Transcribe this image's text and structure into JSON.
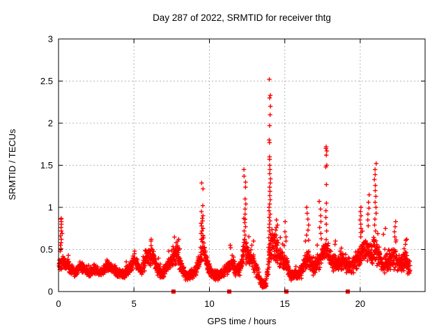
{
  "chart_data": {
    "type": "scatter",
    "title": "Day 287 of 2022, SRMTID for receiver thtg",
    "xlabel": "GPS time / hours",
    "ylabel": "SRMTID / TECUs",
    "xlim": [
      0,
      24.3
    ],
    "ylim": [
      0,
      3
    ],
    "xticks": [
      0,
      5,
      10,
      15,
      20
    ],
    "yticks": [
      "0",
      "0.5",
      "1",
      "1.5",
      "2",
      "2.5",
      "3"
    ],
    "ytick_values": [
      0,
      0.5,
      1,
      1.5,
      2,
      2.5,
      3
    ],
    "grid": true,
    "legend": "none",
    "marker": "plus",
    "marker_color": "#ff0000",
    "grid_color": "#b3b3b3",
    "frame_color": "#000000",
    "background_color": "#ffffff",
    "data_start_hour": 0.03,
    "data_end_hour": 23.3,
    "baseline_envelope": {
      "columns": [
        "hour",
        "low",
        "high"
      ],
      "points": [
        [
          0.0,
          0.22,
          0.42
        ],
        [
          0.3,
          0.25,
          0.45
        ],
        [
          0.55,
          0.24,
          0.42
        ],
        [
          0.85,
          0.2,
          0.33
        ],
        [
          1.1,
          0.16,
          0.28
        ],
        [
          1.4,
          0.22,
          0.38
        ],
        [
          1.7,
          0.2,
          0.34
        ],
        [
          2.0,
          0.16,
          0.28
        ],
        [
          2.4,
          0.2,
          0.34
        ],
        [
          2.8,
          0.16,
          0.28
        ],
        [
          3.2,
          0.22,
          0.38
        ],
        [
          3.5,
          0.22,
          0.36
        ],
        [
          3.9,
          0.17,
          0.29
        ],
        [
          4.3,
          0.14,
          0.26
        ],
        [
          4.7,
          0.2,
          0.36
        ],
        [
          5.0,
          0.26,
          0.46
        ],
        [
          5.2,
          0.24,
          0.42
        ],
        [
          5.5,
          0.18,
          0.32
        ],
        [
          5.9,
          0.28,
          0.55
        ],
        [
          6.2,
          0.3,
          0.58
        ],
        [
          6.5,
          0.2,
          0.38
        ],
        [
          6.8,
          0.14,
          0.27
        ],
        [
          7.2,
          0.2,
          0.4
        ],
        [
          7.6,
          0.28,
          0.55
        ],
        [
          7.9,
          0.3,
          0.58
        ],
        [
          8.2,
          0.18,
          0.35
        ],
        [
          8.5,
          0.1,
          0.24
        ],
        [
          8.8,
          0.12,
          0.28
        ],
        [
          9.1,
          0.18,
          0.35
        ],
        [
          9.4,
          0.28,
          0.52
        ],
        [
          9.6,
          0.38,
          0.72
        ],
        [
          9.8,
          0.25,
          0.45
        ],
        [
          10.1,
          0.15,
          0.3
        ],
        [
          10.5,
          0.12,
          0.26
        ],
        [
          10.9,
          0.13,
          0.28
        ],
        [
          11.3,
          0.2,
          0.42
        ],
        [
          11.5,
          0.24,
          0.48
        ],
        [
          11.8,
          0.15,
          0.32
        ],
        [
          12.1,
          0.2,
          0.4
        ],
        [
          12.35,
          0.32,
          0.75
        ],
        [
          12.6,
          0.28,
          0.55
        ],
        [
          12.9,
          0.25,
          0.5
        ],
        [
          13.2,
          0.12,
          0.3
        ],
        [
          13.5,
          0.04,
          0.14
        ],
        [
          13.75,
          0.03,
          0.12
        ],
        [
          13.95,
          0.15,
          0.65
        ],
        [
          14.1,
          0.28,
          0.85
        ],
        [
          14.35,
          0.33,
          0.72
        ],
        [
          14.6,
          0.28,
          0.58
        ],
        [
          14.9,
          0.24,
          0.5
        ],
        [
          15.1,
          0.2,
          0.44
        ],
        [
          15.4,
          0.12,
          0.26
        ],
        [
          15.8,
          0.12,
          0.28
        ],
        [
          16.1,
          0.15,
          0.32
        ],
        [
          16.4,
          0.24,
          0.52
        ],
        [
          16.6,
          0.26,
          0.56
        ],
        [
          16.9,
          0.18,
          0.38
        ],
        [
          17.2,
          0.24,
          0.48
        ],
        [
          17.5,
          0.28,
          0.62
        ],
        [
          17.8,
          0.32,
          0.66
        ],
        [
          18.1,
          0.24,
          0.48
        ],
        [
          18.4,
          0.22,
          0.44
        ],
        [
          18.7,
          0.25,
          0.5
        ],
        [
          19.0,
          0.22,
          0.45
        ],
        [
          19.3,
          0.18,
          0.4
        ],
        [
          19.6,
          0.22,
          0.45
        ],
        [
          19.9,
          0.28,
          0.58
        ],
        [
          20.1,
          0.3,
          0.62
        ],
        [
          20.4,
          0.33,
          0.68
        ],
        [
          20.7,
          0.3,
          0.6
        ],
        [
          21.0,
          0.33,
          0.7
        ],
        [
          21.2,
          0.28,
          0.58
        ],
        [
          21.5,
          0.18,
          0.4
        ],
        [
          21.8,
          0.22,
          0.48
        ],
        [
          22.1,
          0.26,
          0.56
        ],
        [
          22.4,
          0.24,
          0.52
        ],
        [
          22.7,
          0.2,
          0.45
        ],
        [
          23.0,
          0.24,
          0.52
        ],
        [
          23.3,
          0.16,
          0.38
        ]
      ]
    },
    "spikes": [
      {
        "hour": 0.18,
        "width": 0.14,
        "values": [
          0.87,
          0.86,
          0.83,
          0.8,
          0.76,
          0.72,
          0.69,
          0.66,
          0.62,
          0.58,
          0.55,
          0.51,
          0.48
        ]
      },
      {
        "hour": 5.05,
        "width": 0.15,
        "values": [
          0.48,
          0.45
        ]
      },
      {
        "hour": 6.1,
        "width": 0.2,
        "values": [
          0.62,
          0.6
        ]
      },
      {
        "hour": 7.85,
        "width": 0.25,
        "values": [
          0.62,
          0.6,
          0.58
        ]
      },
      {
        "hour": 9.52,
        "width": 0.14,
        "values": [
          1.29,
          1.22,
          1.02,
          0.95,
          0.9,
          0.87,
          0.84,
          0.81,
          0.78,
          0.75,
          0.72,
          0.69,
          0.66,
          0.62
        ]
      },
      {
        "hour": 11.4,
        "width": 0.1,
        "values": [
          0.55,
          0.52
        ]
      },
      {
        "hour": 12.35,
        "width": 0.16,
        "values": [
          1.45,
          1.37,
          1.3,
          1.24,
          1.1,
          1.04,
          0.98,
          0.92,
          0.87,
          0.82,
          0.77,
          0.72,
          0.67,
          0.62,
          0.57
        ]
      },
      {
        "hour": 12.9,
        "width": 0.2,
        "values": [
          0.6,
          0.55
        ]
      },
      {
        "hour": 14.0,
        "width": 0.12,
        "values": [
          2.52,
          2.33,
          2.3,
          2.2,
          2.1,
          1.97,
          1.8,
          1.77,
          1.6,
          1.57,
          1.5,
          1.45,
          1.4,
          1.34,
          1.29,
          1.24,
          1.19,
          1.14,
          1.09,
          1.04,
          1.0,
          0.96,
          0.92,
          0.88,
          0.84,
          0.8,
          0.76,
          0.72,
          0.68,
          0.64,
          0.6,
          0.56,
          0.52,
          0.48,
          0.44,
          0.4
        ]
      },
      {
        "hour": 14.45,
        "width": 0.25,
        "values": [
          0.85,
          0.79,
          0.73,
          0.67,
          0.61,
          0.55
        ]
      },
      {
        "hour": 15.05,
        "width": 0.1,
        "values": [
          0.83,
          0.71,
          0.65,
          0.6
        ]
      },
      {
        "hour": 16.5,
        "width": 0.18,
        "values": [
          1.0,
          0.93,
          0.86,
          0.79,
          0.73,
          0.67,
          0.61
        ]
      },
      {
        "hour": 17.35,
        "width": 0.14,
        "values": [
          1.07,
          0.98,
          0.9,
          0.83,
          0.76,
          0.69
        ]
      },
      {
        "hour": 17.75,
        "width": 0.1,
        "values": [
          1.72,
          1.7,
          1.67,
          1.62,
          1.5,
          1.48,
          1.27,
          1.05,
          0.96,
          0.88,
          0.8,
          0.72
        ]
      },
      {
        "hour": 18.4,
        "width": 0.15,
        "values": [
          0.6,
          0.56
        ]
      },
      {
        "hour": 20.0,
        "width": 0.1,
        "values": [
          1.0,
          0.95,
          0.9,
          0.85,
          0.8,
          0.75,
          0.7,
          0.65
        ]
      },
      {
        "hour": 20.55,
        "width": 0.12,
        "values": [
          1.15,
          1.06,
          0.99,
          0.92,
          0.85,
          0.78
        ]
      },
      {
        "hour": 21.0,
        "width": 0.12,
        "values": [
          1.52,
          1.45,
          1.39,
          1.33,
          1.26,
          1.2,
          1.13,
          1.06,
          1.0,
          0.93,
          0.86,
          0.79,
          0.72
        ]
      },
      {
        "hour": 21.6,
        "width": 0.15,
        "values": [
          0.75,
          0.68
        ]
      },
      {
        "hour": 22.3,
        "width": 0.14,
        "values": [
          0.83,
          0.77,
          0.71,
          0.65,
          0.59
        ]
      },
      {
        "hour": 23.05,
        "width": 0.12,
        "values": [
          0.62,
          0.56
        ]
      }
    ],
    "zero_flag_markers": {
      "marker": "filled-square",
      "color": "#ff0000",
      "value": 0,
      "hours": [
        7.62,
        11.32,
        15.1,
        19.17
      ]
    }
  }
}
